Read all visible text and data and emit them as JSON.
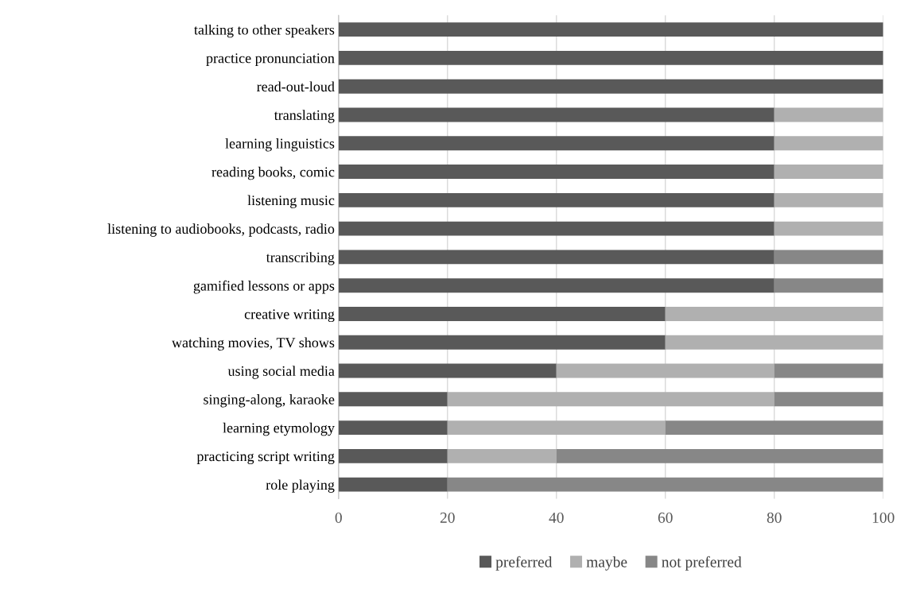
{
  "chart_data": {
    "type": "bar",
    "orientation": "horizontal",
    "stacked": true,
    "categories": [
      "talking to other speakers",
      "practice pronunciation",
      "read-out-loud",
      "translating",
      "learning linguistics",
      "reading books, comic",
      "listening music",
      "listening to audiobooks, podcasts, radio",
      "transcribing",
      "gamified lessons or apps",
      "creative writing",
      "watching movies, TV shows",
      "using social media",
      "singing-along, karaoke",
      "learning etymology",
      "practicing script writing",
      "role playing"
    ],
    "series": [
      {
        "name": "preferred",
        "color": "#595959",
        "values": [
          100,
          100,
          100,
          80,
          80,
          80,
          80,
          80,
          80,
          80,
          60,
          60,
          40,
          20,
          20,
          20,
          20
        ]
      },
      {
        "name": "maybe",
        "color": "#b0b0b0",
        "values": [
          0,
          0,
          0,
          20,
          20,
          20,
          20,
          20,
          0,
          0,
          40,
          40,
          40,
          60,
          40,
          20,
          0
        ]
      },
      {
        "name": "not preferred",
        "color": "#878787",
        "values": [
          0,
          0,
          0,
          0,
          0,
          0,
          0,
          0,
          20,
          20,
          0,
          0,
          20,
          20,
          40,
          60,
          80
        ]
      }
    ],
    "xlim": [
      0,
      100
    ],
    "xticks": [
      0,
      20,
      40,
      60,
      80,
      100
    ],
    "grid": "x",
    "legend": "bottom"
  }
}
